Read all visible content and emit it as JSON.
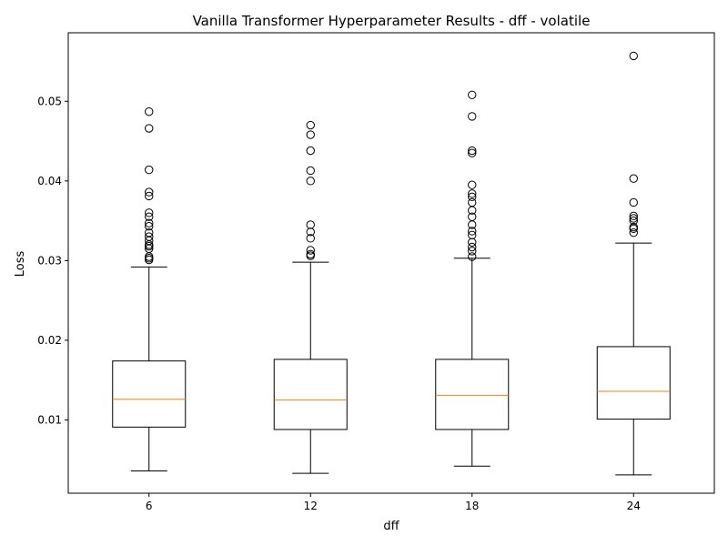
{
  "chart_data": {
    "type": "box",
    "title": "Vanilla Transformer Hyperparameter Results - dff - volatile",
    "xlabel": "dff",
    "ylabel": "Loss",
    "categories": [
      "6",
      "12",
      "18",
      "24"
    ],
    "ylim": [
      0.0008,
      0.0586
    ],
    "yticks": [
      0.01,
      0.02,
      0.03,
      0.04,
      0.05
    ],
    "ytick_labels": [
      "0.01",
      "0.02",
      "0.03",
      "0.04",
      "0.05"
    ],
    "grid": false,
    "box_color": "#000000",
    "median_color": "#ff7f0e",
    "boxes": [
      {
        "category": "6",
        "whisker_low": 0.0036,
        "q1": 0.0091,
        "median": 0.0126,
        "q3": 0.0174,
        "whisker_high": 0.0292,
        "outliers": [
          0.0301,
          0.0303,
          0.0305,
          0.0315,
          0.0318,
          0.032,
          0.0325,
          0.033,
          0.0335,
          0.0343,
          0.0347,
          0.0355,
          0.036,
          0.0381,
          0.0386,
          0.0414,
          0.0466,
          0.0487
        ]
      },
      {
        "category": "12",
        "whisker_low": 0.0033,
        "q1": 0.0088,
        "median": 0.0125,
        "q3": 0.0176,
        "whisker_high": 0.0298,
        "outliers": [
          0.0306,
          0.0308,
          0.0313,
          0.0328,
          0.0336,
          0.0345,
          0.04,
          0.0413,
          0.0438,
          0.0458,
          0.047
        ]
      },
      {
        "category": "18",
        "whisker_low": 0.0042,
        "q1": 0.0088,
        "median": 0.0131,
        "q3": 0.0176,
        "whisker_high": 0.0303,
        "outliers": [
          0.0305,
          0.0312,
          0.0317,
          0.0323,
          0.0332,
          0.0337,
          0.0345,
          0.0355,
          0.0363,
          0.0373,
          0.038,
          0.0384,
          0.0395,
          0.0435,
          0.0438,
          0.0481,
          0.0508
        ]
      },
      {
        "category": "24",
        "whisker_low": 0.0031,
        "q1": 0.0101,
        "median": 0.0136,
        "q3": 0.0192,
        "whisker_high": 0.0322,
        "outliers": [
          0.0335,
          0.034,
          0.0342,
          0.035,
          0.0353,
          0.0356,
          0.0373,
          0.0403,
          0.0557
        ]
      }
    ]
  }
}
